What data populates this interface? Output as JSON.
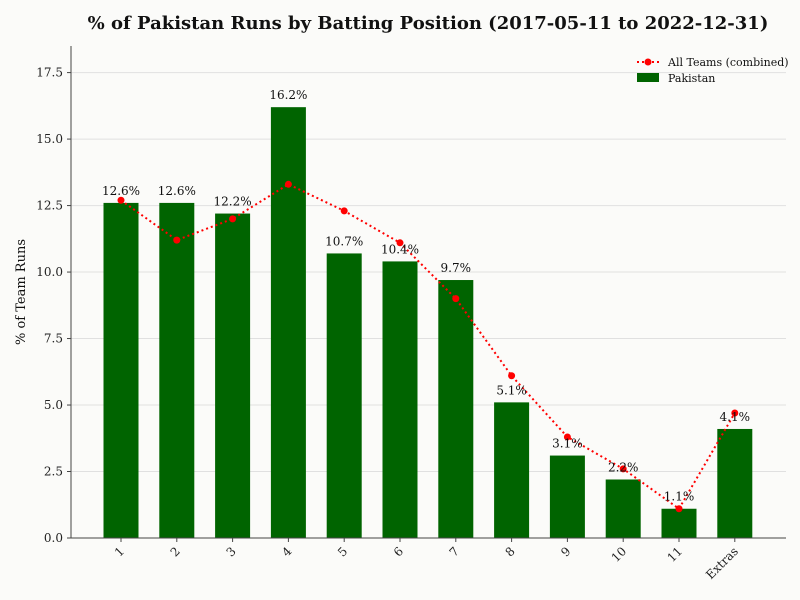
{
  "chart_data": {
    "type": "bar",
    "title": "% of Pakistan Runs by Batting Position (2017-05-11 to 2022-12-31)",
    "xlabel": "",
    "ylabel": "% of Team Runs",
    "categories": [
      "1",
      "2",
      "3",
      "4",
      "5",
      "6",
      "7",
      "8",
      "9",
      "10",
      "11",
      "Extras"
    ],
    "ylim": [
      0,
      18.5
    ],
    "yticks": [
      "0.0",
      "2.5",
      "5.0",
      "7.5",
      "10.0",
      "12.5",
      "15.0",
      "17.5"
    ],
    "grid": true,
    "legend_position": "top-right",
    "series": [
      {
        "name": "Pakistan",
        "kind": "bar",
        "color": "#006400",
        "values": [
          12.6,
          12.6,
          12.2,
          16.2,
          10.7,
          10.4,
          9.7,
          5.1,
          3.1,
          2.2,
          1.1,
          4.1
        ],
        "labels": [
          "12.6%",
          "12.6%",
          "12.2%",
          "16.2%",
          "10.7%",
          "10.4%",
          "9.7%",
          "5.1%",
          "3.1%",
          "2.2%",
          "1.1%",
          "4.1%"
        ]
      },
      {
        "name": "All Teams (combined)",
        "kind": "line",
        "style": "dotted",
        "color": "#ff0000",
        "values": [
          12.7,
          11.2,
          12.0,
          13.3,
          12.3,
          11.1,
          9.0,
          6.1,
          3.8,
          2.6,
          1.1,
          4.7
        ]
      }
    ]
  }
}
